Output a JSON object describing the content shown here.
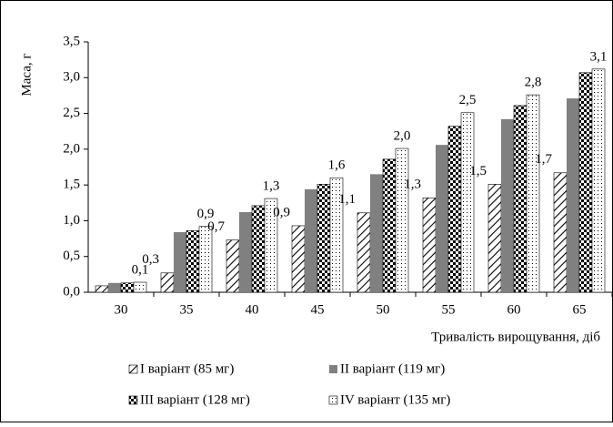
{
  "chart_data": {
    "type": "bar",
    "xlabel": "Тривалість вирощування, діб",
    "ylabel": "Маса, г",
    "categories": [
      "30",
      "35",
      "40",
      "45",
      "50",
      "55",
      "60",
      "65"
    ],
    "series": [
      {
        "name": "І варіант (85 мг)",
        "color": "#000000",
        "pattern": "hatch",
        "values": [
          0.09,
          0.27,
          0.73,
          0.93,
          1.11,
          1.32,
          1.51,
          1.67
        ],
        "value_labels": [
          null,
          "0,3",
          "0,7",
          "0,9",
          "1,1",
          "1,3",
          "1,5",
          "1,7"
        ]
      },
      {
        "name": "ІІ варіант (119 мг)",
        "color": "#808080",
        "pattern": "solid",
        "values": [
          0.13,
          0.84,
          1.12,
          1.44,
          1.65,
          2.06,
          2.42,
          2.71
        ]
      },
      {
        "name": "ІІІ варіант (128 мг)",
        "color": "#000000",
        "pattern": "checker",
        "values": [
          0.13,
          0.86,
          1.21,
          1.51,
          1.86,
          2.32,
          2.61,
          3.07
        ]
      },
      {
        "name": "ІV варіант (135 мг)",
        "color": "#000000",
        "pattern": "dots",
        "values": [
          0.14,
          0.92,
          1.31,
          1.6,
          2.01,
          2.51,
          2.76,
          3.12
        ],
        "value_labels": [
          "0,1",
          "0,9",
          "1,3",
          "1,6",
          "2,0",
          "2,5",
          "2,8",
          "3,1"
        ]
      }
    ],
    "ylim": [
      0,
      3.5
    ],
    "yticks": [
      {
        "value": 0,
        "label": "0,0"
      },
      {
        "value": 0.5,
        "label": "0,5"
      },
      {
        "value": 1,
        "label": "1,0"
      },
      {
        "value": 1.5,
        "label": "1,5"
      },
      {
        "value": 2,
        "label": "2,0"
      },
      {
        "value": 2.5,
        "label": "2,5"
      },
      {
        "value": 3,
        "label": "3,0"
      },
      {
        "value": 3.5,
        "label": "3,5"
      }
    ],
    "grid": false,
    "legend": "bottom"
  }
}
